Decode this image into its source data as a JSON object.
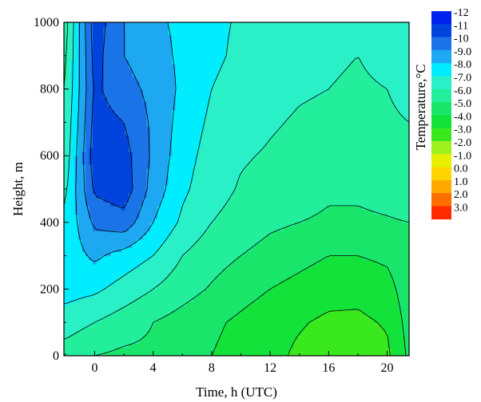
{
  "chart_data": {
    "type": "heatmap",
    "title": "",
    "xlabel": "Time, h (UTC)",
    "ylabel": "Height, m",
    "xlim": [
      -2.1,
      21.5
    ],
    "ylim": [
      0,
      1000
    ],
    "x_ticks": [
      0,
      4,
      8,
      12,
      16,
      20
    ],
    "y_ticks": [
      0,
      200,
      400,
      600,
      800,
      1000
    ],
    "grid": false,
    "legend": "colorbar right",
    "colorbar": {
      "title": "Temperature,°C",
      "levels": [
        "-12",
        "-11",
        "-10",
        "-9.0",
        "-8.0",
        "-7.0",
        "-6.0",
        "-5.0",
        "-4.0",
        "-3.0",
        "-2.0",
        "-1.0",
        "0.0",
        "1.0",
        "2.0",
        "3.0"
      ],
      "colors": [
        "#0022ee",
        "#0044dd",
        "#1a74e8",
        "#1ea8f2",
        "#00ecff",
        "#2af0c8",
        "#22ee9c",
        "#18e56a",
        "#12e23a",
        "#3ae81e",
        "#a0f020",
        "#e6f000",
        "#ffd400",
        "#ffa800",
        "#ff6e00",
        "#ff2a00"
      ]
    },
    "x": [
      -2,
      0,
      2,
      4,
      6,
      8,
      10,
      12,
      14,
      16,
      18,
      20,
      21.5
    ],
    "y": [
      0,
      100,
      200,
      300,
      400,
      500,
      600,
      700,
      800,
      900,
      1000
    ],
    "z": [
      [
        -5.5,
        -5.0,
        -4.8,
        -4.8,
        -4.4,
        -4.0,
        -3.6,
        -3.3,
        -2.8,
        -2.5,
        -2.5,
        -2.8,
        -4.2
      ],
      [
        -6.5,
        -6.0,
        -5.5,
        -5.0,
        -4.6,
        -4.2,
        -3.8,
        -3.4,
        -3.1,
        -2.8,
        -2.8,
        -3.1,
        -4.4
      ],
      [
        -7.4,
        -7.2,
        -6.6,
        -6.0,
        -5.4,
        -4.9,
        -4.4,
        -4.0,
        -3.7,
        -3.4,
        -3.3,
        -3.6,
        -4.6
      ],
      [
        -7.4,
        -8.2,
        -7.6,
        -7.0,
        -6.0,
        -5.4,
        -5.0,
        -4.6,
        -4.3,
        -4.0,
        -4.0,
        -4.2,
        -4.8
      ],
      [
        -7.2,
        -9.2,
        -9.6,
        -8.0,
        -6.8,
        -6.0,
        -5.6,
        -5.2,
        -5.0,
        -4.8,
        -4.8,
        -4.9,
        -5.0
      ],
      [
        -6.8,
        -10.2,
        -10.6,
        -8.6,
        -7.2,
        -6.4,
        -5.9,
        -5.7,
        -5.6,
        -5.2,
        -5.2,
        -5.4,
        -5.6
      ],
      [
        -6.4,
        -10.6,
        -10.4,
        -8.8,
        -7.4,
        -6.6,
        -6.1,
        -5.9,
        -5.7,
        -5.6,
        -5.5,
        -5.6,
        -5.8
      ],
      [
        -6.2,
        -10.4,
        -10.0,
        -8.8,
        -7.6,
        -6.8,
        -6.4,
        -6.1,
        -5.9,
        -5.8,
        -5.8,
        -5.9,
        -6.0
      ],
      [
        -6.0,
        -10.2,
        -9.4,
        -8.7,
        -7.8,
        -7.0,
        -6.6,
        -6.3,
        -6.1,
        -6.0,
        -5.9,
        -6.0,
        -6.2
      ],
      [
        -5.8,
        -10.4,
        -9.0,
        -8.4,
        -7.8,
        -7.2,
        -6.8,
        -6.5,
        -6.2,
        -6.1,
        -6.0,
        -6.2,
        -6.4
      ],
      [
        -5.6,
        -10.6,
        -9.0,
        -8.2,
        -7.8,
        -7.2,
        -6.9,
        -6.6,
        -6.4,
        -6.2,
        -6.1,
        -6.3,
        -6.5
      ]
    ]
  }
}
